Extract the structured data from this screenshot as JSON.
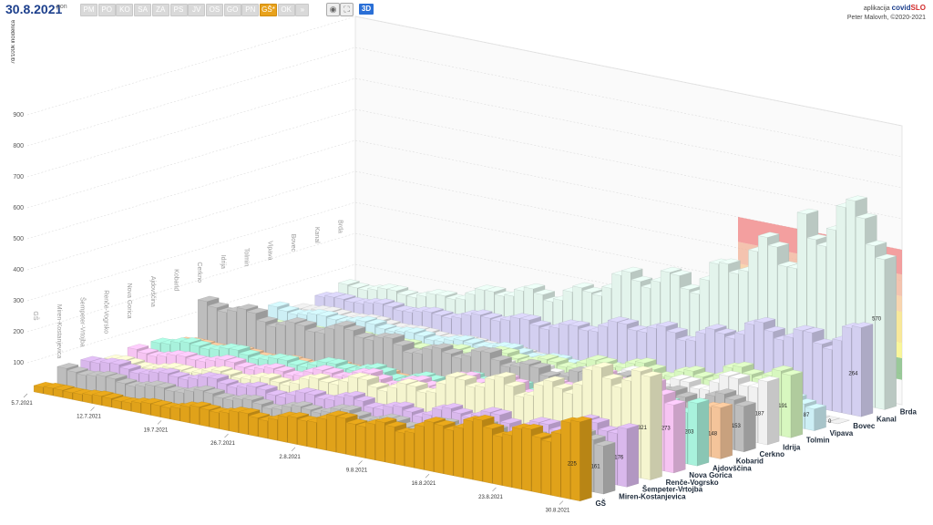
{
  "header": {
    "date": "30.8.2021",
    "weekday": "pon",
    "regions": [
      {
        "label": "PM",
        "active": false
      },
      {
        "label": "PO",
        "active": false
      },
      {
        "label": "KO",
        "active": false
      },
      {
        "label": "SA",
        "active": false
      },
      {
        "label": "ZA",
        "active": false
      },
      {
        "label": "PS",
        "active": false
      },
      {
        "label": "JV",
        "active": false
      },
      {
        "label": "OS",
        "active": false
      },
      {
        "label": "GO",
        "active": false
      },
      {
        "label": "PN",
        "active": false
      },
      {
        "label": "GŠ*",
        "active": true
      },
      {
        "label": "OK",
        "active": false
      }
    ],
    "more_label": "»",
    "mode_label": "3D",
    "brand_prefix": "aplikacija",
    "brand_covid": "covid",
    "brand_slo": "SLO",
    "author": "Peter Malovrh, ©2020-2021"
  },
  "chart_data": {
    "type": "bar",
    "ylabel": "7d/100k incidenca",
    "ylim": [
      0,
      900
    ],
    "yticks": [
      100,
      200,
      300,
      400,
      500,
      600,
      700,
      800,
      900
    ],
    "dates": [
      "5.7.2021",
      "12.7.2021",
      "19.7.2021",
      "26.7.2021",
      "2.8.2021",
      "9.8.2021",
      "16.8.2021",
      "23.8.2021",
      "30.8.2021"
    ],
    "series": [
      {
        "name": "GŠ",
        "color": "#e0a21a",
        "last": 225,
        "start": 20
      },
      {
        "name": "Miren-Kostanjevica",
        "color": "#bdbdbd",
        "last": 161,
        "start": 50
      },
      {
        "name": "Šempeter-Vrtojba",
        "color": "#d9b8ec",
        "last": 176,
        "start": 60
      },
      {
        "name": "Renče-Vogrsko",
        "color": "#f5f5cf",
        "last": 321,
        "start": 40
      },
      {
        "name": "Nova Gorica",
        "color": "#f6c4f2",
        "last": 273,
        "start": 50
      },
      {
        "name": "Ajdovščina",
        "color": "#a8f2dc",
        "last": 203,
        "start": 60
      },
      {
        "name": "Kobarid",
        "color": "#f4c49a",
        "last": 148,
        "start": 30
      },
      {
        "name": "Cerkno",
        "color": "#bdbdbd",
        "last": 153,
        "start": 120
      },
      {
        "name": "Idrija",
        "color": "#f1f1f1",
        "last": 187,
        "start": 30
      },
      {
        "name": "Tolmin",
        "color": "#d7f7bf",
        "last": 191,
        "start": 30
      },
      {
        "name": "Vipava",
        "color": "#cdeff5",
        "last": 87,
        "start": 50
      },
      {
        "name": "Bovec",
        "color": "#e6e6e6",
        "last": 0,
        "start": 30
      },
      {
        "name": "Kanal",
        "color": "#d3cff0",
        "last": 264,
        "start": 40
      },
      {
        "name": "Brda",
        "color": "#e3f4ec",
        "last": 570,
        "start": 50
      }
    ],
    "risk_bands": [
      {
        "from": 80,
        "to": 150,
        "color": "#78b878"
      },
      {
        "from": 150,
        "to": 200,
        "color": "#f8f47a"
      },
      {
        "from": 200,
        "to": 300,
        "color": "#f7e27a"
      },
      {
        "from": 300,
        "to": 350,
        "color": "#f7c896"
      },
      {
        "from": 350,
        "to": 420,
        "color": "#f2b096"
      },
      {
        "from": 420,
        "to": 500,
        "color": "#f08080"
      }
    ]
  }
}
